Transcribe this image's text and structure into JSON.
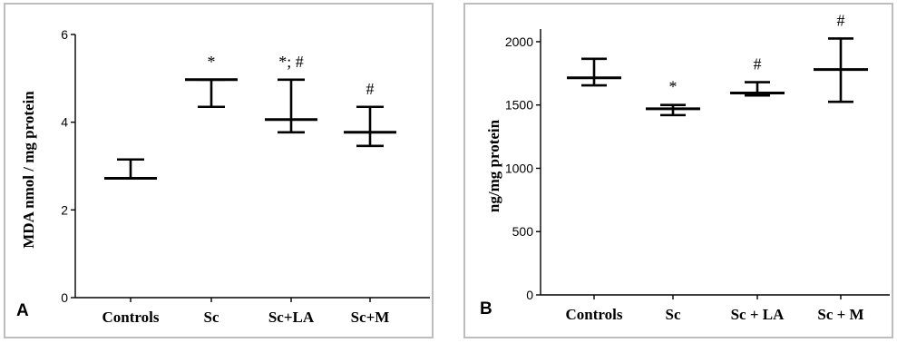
{
  "chart_data": [
    {
      "type": "error_bar",
      "panel_label": "A",
      "xlabel": "",
      "ylabel": "MDA nmol / mg protein",
      "ylim": [
        0,
        6
      ],
      "yticks": [
        0,
        2,
        4,
        6
      ],
      "categories": [
        "Controls",
        "Sc",
        "Sc+LA",
        "Sc+M"
      ],
      "mean": [
        2.72,
        4.97,
        4.06,
        3.77
      ],
      "upper": [
        3.15,
        4.97,
        4.97,
        4.35
      ],
      "lower": [
        2.72,
        4.35,
        3.77,
        3.46
      ],
      "annotations": [
        "",
        "*",
        "*; #",
        "#"
      ],
      "grid": false
    },
    {
      "type": "error_bar",
      "panel_label": "B",
      "xlabel": "",
      "ylabel": "ng/mg protein",
      "ylim": [
        0,
        2100
      ],
      "yticks": [
        0,
        500,
        1000,
        1500,
        2000
      ],
      "categories": [
        "Controls",
        "Sc",
        "Sc + LA",
        "Sc + M"
      ],
      "mean": [
        1715,
        1470,
        1595,
        1780
      ],
      "upper": [
        1865,
        1500,
        1680,
        2025
      ],
      "lower": [
        1655,
        1420,
        1575,
        1525
      ],
      "annotations": [
        "",
        "*",
        "#",
        "#"
      ],
      "grid": false
    }
  ]
}
